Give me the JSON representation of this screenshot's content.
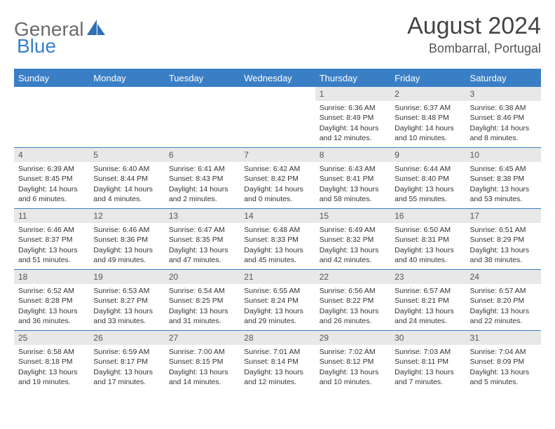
{
  "brand": {
    "word1": "General",
    "word2": "Blue"
  },
  "header": {
    "title": "August 2024",
    "location": "Bombarral, Portugal"
  },
  "colors": {
    "accent": "#3a7fc6",
    "header_bg": "#3a7fc6",
    "daynum_bg": "#e8e8e8",
    "text": "#333333",
    "muted": "#6b6b6b"
  },
  "weekdays": [
    "Sunday",
    "Monday",
    "Tuesday",
    "Wednesday",
    "Thursday",
    "Friday",
    "Saturday"
  ],
  "weeks": [
    [
      null,
      null,
      null,
      null,
      {
        "n": "1",
        "sunrise": "6:36 AM",
        "sunset": "8:49 PM",
        "daylight": "14 hours and 12 minutes."
      },
      {
        "n": "2",
        "sunrise": "6:37 AM",
        "sunset": "8:48 PM",
        "daylight": "14 hours and 10 minutes."
      },
      {
        "n": "3",
        "sunrise": "6:38 AM",
        "sunset": "8:46 PM",
        "daylight": "14 hours and 8 minutes."
      }
    ],
    [
      {
        "n": "4",
        "sunrise": "6:39 AM",
        "sunset": "8:45 PM",
        "daylight": "14 hours and 6 minutes."
      },
      {
        "n": "5",
        "sunrise": "6:40 AM",
        "sunset": "8:44 PM",
        "daylight": "14 hours and 4 minutes."
      },
      {
        "n": "6",
        "sunrise": "6:41 AM",
        "sunset": "8:43 PM",
        "daylight": "14 hours and 2 minutes."
      },
      {
        "n": "7",
        "sunrise": "6:42 AM",
        "sunset": "8:42 PM",
        "daylight": "14 hours and 0 minutes."
      },
      {
        "n": "8",
        "sunrise": "6:43 AM",
        "sunset": "8:41 PM",
        "daylight": "13 hours and 58 minutes."
      },
      {
        "n": "9",
        "sunrise": "6:44 AM",
        "sunset": "8:40 PM",
        "daylight": "13 hours and 55 minutes."
      },
      {
        "n": "10",
        "sunrise": "6:45 AM",
        "sunset": "8:38 PM",
        "daylight": "13 hours and 53 minutes."
      }
    ],
    [
      {
        "n": "11",
        "sunrise": "6:46 AM",
        "sunset": "8:37 PM",
        "daylight": "13 hours and 51 minutes."
      },
      {
        "n": "12",
        "sunrise": "6:46 AM",
        "sunset": "8:36 PM",
        "daylight": "13 hours and 49 minutes."
      },
      {
        "n": "13",
        "sunrise": "6:47 AM",
        "sunset": "8:35 PM",
        "daylight": "13 hours and 47 minutes."
      },
      {
        "n": "14",
        "sunrise": "6:48 AM",
        "sunset": "8:33 PM",
        "daylight": "13 hours and 45 minutes."
      },
      {
        "n": "15",
        "sunrise": "6:49 AM",
        "sunset": "8:32 PM",
        "daylight": "13 hours and 42 minutes."
      },
      {
        "n": "16",
        "sunrise": "6:50 AM",
        "sunset": "8:31 PM",
        "daylight": "13 hours and 40 minutes."
      },
      {
        "n": "17",
        "sunrise": "6:51 AM",
        "sunset": "8:29 PM",
        "daylight": "13 hours and 38 minutes."
      }
    ],
    [
      {
        "n": "18",
        "sunrise": "6:52 AM",
        "sunset": "8:28 PM",
        "daylight": "13 hours and 36 minutes."
      },
      {
        "n": "19",
        "sunrise": "6:53 AM",
        "sunset": "8:27 PM",
        "daylight": "13 hours and 33 minutes."
      },
      {
        "n": "20",
        "sunrise": "6:54 AM",
        "sunset": "8:25 PM",
        "daylight": "13 hours and 31 minutes."
      },
      {
        "n": "21",
        "sunrise": "6:55 AM",
        "sunset": "8:24 PM",
        "daylight": "13 hours and 29 minutes."
      },
      {
        "n": "22",
        "sunrise": "6:56 AM",
        "sunset": "8:22 PM",
        "daylight": "13 hours and 26 minutes."
      },
      {
        "n": "23",
        "sunrise": "6:57 AM",
        "sunset": "8:21 PM",
        "daylight": "13 hours and 24 minutes."
      },
      {
        "n": "24",
        "sunrise": "6:57 AM",
        "sunset": "8:20 PM",
        "daylight": "13 hours and 22 minutes."
      }
    ],
    [
      {
        "n": "25",
        "sunrise": "6:58 AM",
        "sunset": "8:18 PM",
        "daylight": "13 hours and 19 minutes."
      },
      {
        "n": "26",
        "sunrise": "6:59 AM",
        "sunset": "8:17 PM",
        "daylight": "13 hours and 17 minutes."
      },
      {
        "n": "27",
        "sunrise": "7:00 AM",
        "sunset": "8:15 PM",
        "daylight": "13 hours and 14 minutes."
      },
      {
        "n": "28",
        "sunrise": "7:01 AM",
        "sunset": "8:14 PM",
        "daylight": "13 hours and 12 minutes."
      },
      {
        "n": "29",
        "sunrise": "7:02 AM",
        "sunset": "8:12 PM",
        "daylight": "13 hours and 10 minutes."
      },
      {
        "n": "30",
        "sunrise": "7:03 AM",
        "sunset": "8:11 PM",
        "daylight": "13 hours and 7 minutes."
      },
      {
        "n": "31",
        "sunrise": "7:04 AM",
        "sunset": "8:09 PM",
        "daylight": "13 hours and 5 minutes."
      }
    ]
  ],
  "labels": {
    "sunrise": "Sunrise: ",
    "sunset": "Sunset: ",
    "daylight": "Daylight: "
  }
}
